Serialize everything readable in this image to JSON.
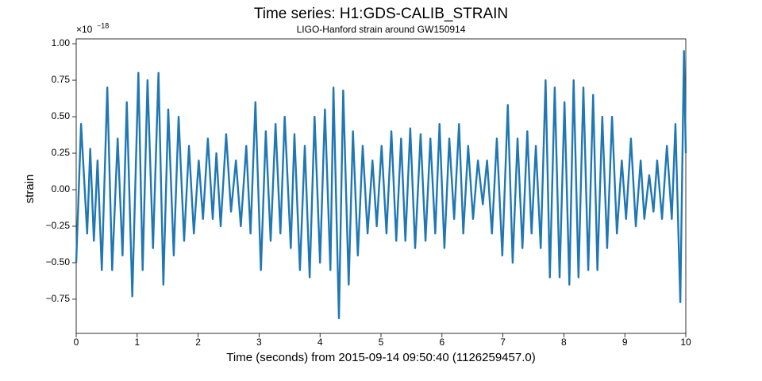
{
  "chart_data": {
    "type": "line",
    "title": "Time series: H1:GDS-CALIB_STRAIN",
    "subtitle": "LIGO-Hanford strain around GW150914",
    "x_label": "Time (seconds) from 2015-09-14 09:50:40 (1126259457.0)",
    "y_label": "strain",
    "y_scale_base": "×10",
    "y_scale_exponent": "−18",
    "xlim": [
      0,
      10
    ],
    "xticks": [
      0,
      1,
      2,
      3,
      4,
      5,
      6,
      7,
      8,
      9,
      10
    ],
    "ylim": [
      -0.984,
      1.033
    ],
    "yticks": [
      {
        "value": -0.75,
        "label": "−0.75"
      },
      {
        "value": -0.5,
        "label": "−0.50"
      },
      {
        "value": -0.25,
        "label": "−0.25"
      },
      {
        "value": 0,
        "label": "0.00"
      },
      {
        "value": 0.25,
        "label": "0.25"
      },
      {
        "value": 0.5,
        "label": "0.50"
      },
      {
        "value": 0.75,
        "label": "0.75"
      },
      {
        "value": 1,
        "label": "1.00"
      }
    ],
    "grid": false,
    "x": [
      0,
      0.08,
      0.18,
      0.23,
      0.29,
      0.35,
      0.42,
      0.51,
      0.59,
      0.68,
      0.76,
      0.83,
      0.92,
      1.02,
      1.09,
      1.17,
      1.26,
      1.35,
      1.43,
      1.51,
      1.6,
      1.68,
      1.77,
      1.85,
      1.93,
      2.01,
      2.08,
      2.16,
      2.24,
      2.3,
      2.37,
      2.46,
      2.54,
      2.62,
      2.7,
      2.79,
      2.86,
      2.94,
      3.03,
      3.11,
      3.19,
      3.27,
      3.35,
      3.42,
      3.52,
      3.58,
      3.67,
      3.75,
      3.83,
      3.91,
      4.0,
      4.08,
      4.17,
      4.22,
      4.31,
      4.38,
      4.47,
      4.54,
      4.62,
      4.7,
      4.78,
      4.86,
      4.93,
      5.01,
      5.09,
      5.17,
      5.25,
      5.33,
      5.4,
      5.48,
      5.56,
      5.65,
      5.73,
      5.81,
      5.89,
      5.96,
      6.04,
      6.12,
      6.2,
      6.28,
      6.35,
      6.43,
      6.51,
      6.59,
      6.67,
      6.74,
      6.82,
      6.9,
      6.99,
      7.08,
      7.16,
      7.24,
      7.32,
      7.4,
      7.47,
      7.54,
      7.62,
      7.7,
      7.77,
      7.85,
      7.93,
      8.01,
      8.09,
      8.16,
      8.24,
      8.32,
      8.4,
      8.48,
      8.55,
      8.63,
      8.71,
      8.79,
      8.87,
      8.95,
      9.02,
      9.1,
      9.18,
      9.26,
      9.32,
      9.4,
      9.47,
      9.53,
      9.61,
      9.69,
      9.77,
      9.83,
      9.91,
      9.97,
      10.0
    ],
    "series": [
      {
        "name": "H1:GDS-CALIB_STRAIN",
        "color": "#1f77b4",
        "values": [
          -0.5,
          0.45,
          -0.3,
          0.28,
          -0.35,
          0.2,
          -0.55,
          0.7,
          -0.55,
          0.35,
          -0.45,
          0.6,
          -0.73,
          0.8,
          -0.55,
          0.75,
          -0.4,
          0.8,
          -0.65,
          0.55,
          -0.45,
          0.5,
          -0.35,
          0.3,
          -0.3,
          0.2,
          -0.2,
          0.35,
          -0.2,
          0.25,
          -0.25,
          0.38,
          -0.15,
          0.2,
          -0.25,
          0.3,
          -0.3,
          0.6,
          -0.55,
          0.4,
          -0.35,
          0.45,
          -0.3,
          0.5,
          -0.4,
          0.38,
          -0.55,
          0.3,
          -0.6,
          0.5,
          -0.5,
          0.55,
          -0.55,
          0.7,
          -0.88,
          0.68,
          -0.65,
          0.4,
          -0.45,
          0.3,
          -0.3,
          0.2,
          -0.25,
          0.3,
          -0.3,
          0.4,
          -0.35,
          0.35,
          -0.35,
          0.42,
          -0.4,
          0.38,
          -0.35,
          0.35,
          -0.3,
          0.45,
          -0.4,
          0.35,
          -0.2,
          0.45,
          -0.3,
          0.3,
          -0.2,
          0.2,
          -0.1,
          0.2,
          -0.3,
          0.35,
          -0.45,
          0.58,
          -0.5,
          0.35,
          -0.4,
          0.4,
          -0.3,
          0.3,
          -0.4,
          0.75,
          -0.6,
          0.7,
          -0.6,
          0.6,
          -0.65,
          0.75,
          -0.6,
          0.7,
          -0.55,
          0.65,
          -0.55,
          0.5,
          -0.4,
          0.5,
          -0.3,
          0.2,
          -0.2,
          0.35,
          -0.25,
          0.2,
          -0.2,
          0.1,
          -0.15,
          0.2,
          -0.2,
          0.3,
          -0.2,
          0.45,
          -0.77,
          0.95,
          0.25
        ]
      }
    ]
  }
}
